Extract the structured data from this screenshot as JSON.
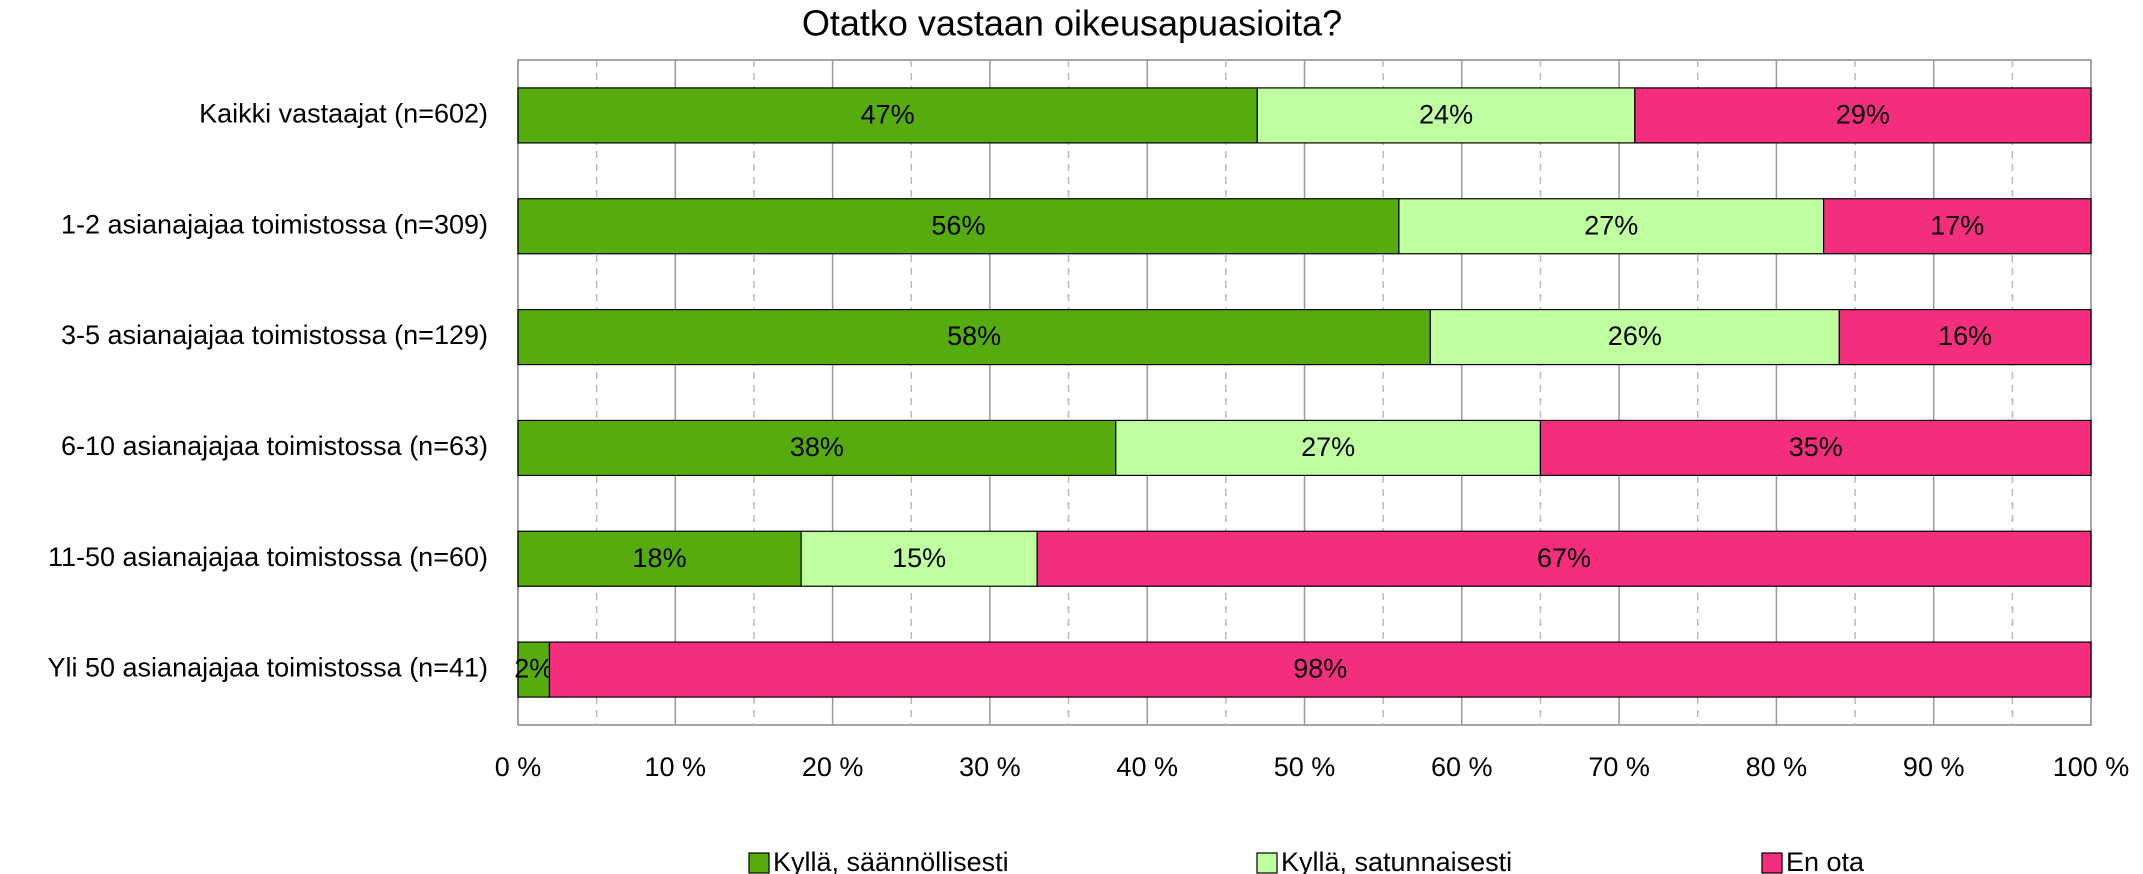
{
  "chart_data": {
    "type": "stacked_bar_horizontal",
    "title": "Otatko vastaan oikeusapuasioita?",
    "categories": [
      "Kaikki vastaajat (n=602)",
      "1-2 asianajajaa toimistossa (n=309)",
      "3-5 asianajajaa toimistossa (n=129)",
      "6-10 asianajajaa toimistossa (n=63)",
      "11-50 asianajajaa toimistossa (n=60)",
      "Yli 50 asianajajaa toimistossa (n=41)"
    ],
    "series": [
      {
        "name": "Kyllä, säännöllisesti",
        "color": "#56ab0e",
        "values": [
          47,
          56,
          58,
          38,
          18,
          2
        ],
        "value_labels": [
          "47%",
          "56%",
          "58%",
          "38%",
          "18%",
          "2%"
        ]
      },
      {
        "name": "Kyllä, satunnaisesti",
        "color": "#bfff9f",
        "values": [
          24,
          27,
          26,
          27,
          15,
          0
        ],
        "value_labels": [
          "24%",
          "27%",
          "26%",
          "27%",
          "15%",
          null
        ]
      },
      {
        "name": "En ota",
        "color": "#f52d7d",
        "values": [
          29,
          17,
          16,
          35,
          67,
          98
        ],
        "value_labels": [
          "29%",
          "17%",
          "16%",
          "35%",
          "67%",
          "98%"
        ]
      }
    ],
    "xlim": [
      0,
      100
    ],
    "xticks": [
      {
        "value": 0,
        "label": "0 %"
      },
      {
        "value": 10,
        "label": "10 %"
      },
      {
        "value": 20,
        "label": "20 %"
      },
      {
        "value": 30,
        "label": "30 %"
      },
      {
        "value": 40,
        "label": "40 %"
      },
      {
        "value": 50,
        "label": "50 %"
      },
      {
        "value": 60,
        "label": "60 %"
      },
      {
        "value": 70,
        "label": "70 %"
      },
      {
        "value": 80,
        "label": "80 %"
      },
      {
        "value": 90,
        "label": "90 %"
      },
      {
        "value": 100,
        "label": "100 %"
      }
    ],
    "grid": true,
    "legend": "bottom"
  }
}
